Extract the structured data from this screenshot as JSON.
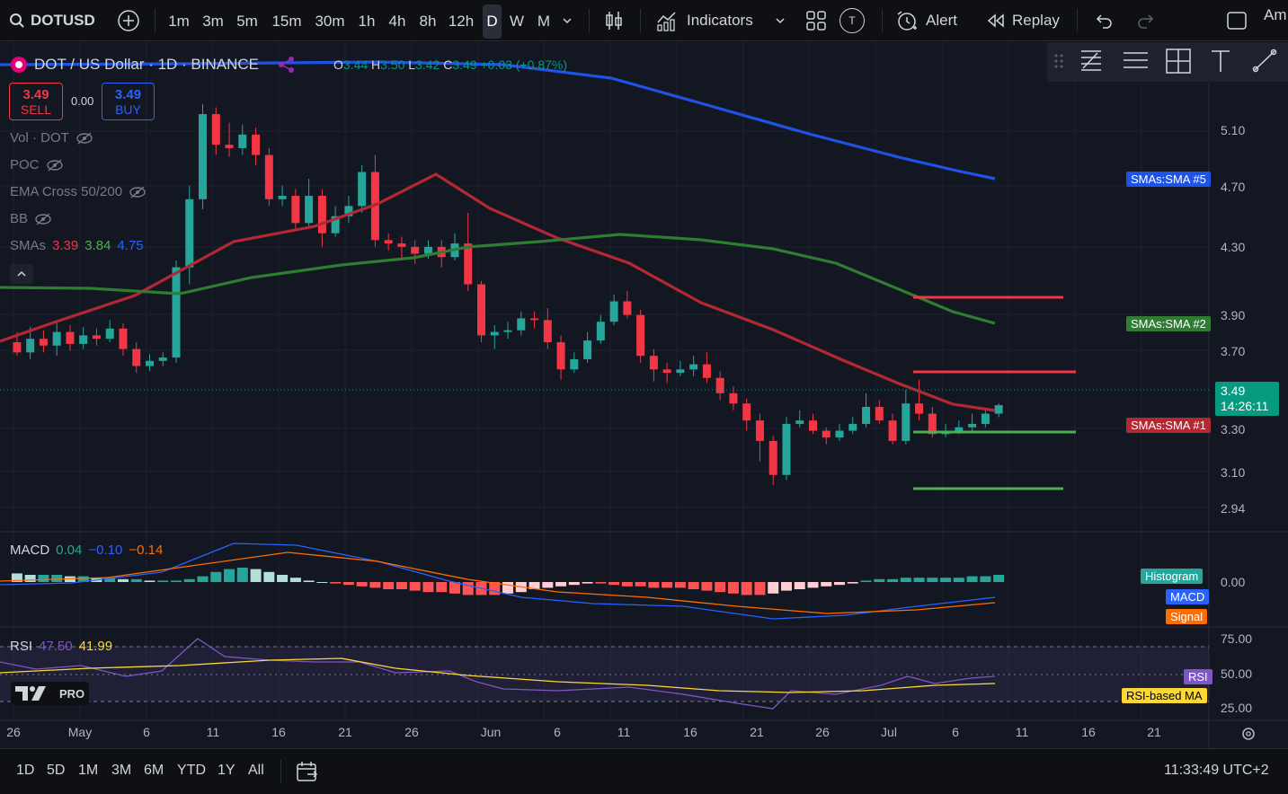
{
  "header": {
    "symbol": "DOTUSD",
    "timeframes": [
      "1m",
      "3m",
      "5m",
      "15m",
      "30m",
      "1h",
      "4h",
      "8h",
      "12h",
      "D",
      "W",
      "M"
    ],
    "active_timeframe": "D",
    "indicators_label": "Indicators",
    "alert_label": "Alert",
    "replay_label": "Replay",
    "template_badge": "T",
    "account_cut": "Am"
  },
  "legend": {
    "title": "DOT / US Dollar · 1D · BINANCE",
    "o_label": "O",
    "o_val": "3.44",
    "h_label": "H",
    "h_val": "3.50",
    "l_label": "L",
    "l_val": "3.42",
    "c_label": "C",
    "c_val": "3.49",
    "change": "+0.03 (+0.87%)",
    "sell_price": "3.49",
    "sell_label": "SELL",
    "spread": "0.00",
    "buy_price": "3.49",
    "buy_label": "BUY",
    "indicators": [
      "Vol · DOT",
      "POC",
      "EMA Cross 50/200",
      "BB"
    ],
    "smas_label": "SMAs",
    "smas_values": [
      "3.39",
      "3.84",
      "4.75"
    ]
  },
  "price_axis": {
    "ticks": [
      "5.10",
      "4.70",
      "4.30",
      "3.90",
      "3.70",
      "3.30",
      "3.10",
      "2.94"
    ],
    "last_price": "3.49",
    "countdown": "14:26:11",
    "tags": [
      "SMAs:SMA #5",
      "SMAs:SMA #2",
      "SMAs:SMA #1"
    ]
  },
  "macd": {
    "label": "MACD",
    "values": [
      "0.04",
      "−0.10",
      "−0.14"
    ],
    "axis_tick": "0.00",
    "tags": [
      "Histogram",
      "MACD",
      "Signal"
    ]
  },
  "rsi": {
    "label": "RSI",
    "values": [
      "47.50",
      "41.99"
    ],
    "axis_ticks": [
      "75.00",
      "50.00",
      "25.00"
    ],
    "tags": [
      "RSI",
      "RSI-based MA"
    ]
  },
  "time_axis": {
    "ticks": [
      "26",
      "May",
      "6",
      "11",
      "16",
      "21",
      "26",
      "Jun",
      "6",
      "11",
      "16",
      "21",
      "26",
      "Jul",
      "6",
      "11",
      "16",
      "21"
    ]
  },
  "logo_text": "PRO",
  "bottom": {
    "ranges": [
      "1D",
      "5D",
      "1M",
      "3M",
      "6M",
      "YTD",
      "1Y",
      "All"
    ],
    "clock": "11:33:49 UTC+2"
  },
  "colors": {
    "up": "#26a69a",
    "down": "#f23645",
    "sma1": "#b22833",
    "sma2": "#2e7d32",
    "sma5": "#1e53e5",
    "macd": "#2962ff",
    "signal": "#ff6d00",
    "rsi": "#7e57c2",
    "rsi_ma": "#fdd835"
  },
  "chart_data": {
    "type": "candlestick",
    "series": [
      {
        "name": "SMAs:SMA #1"
      },
      {
        "name": "SMAs:SMA #2"
      },
      {
        "name": "SMAs:SMA #5"
      }
    ]
  }
}
